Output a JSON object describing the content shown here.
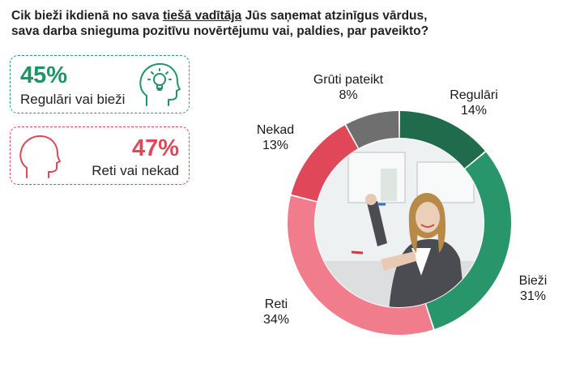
{
  "question": {
    "part1": "Cik bieži ikdienā no sava ",
    "underlined": "tiešā vadītāja",
    "part2": " Jūs saņemat atzinīgus vārdus, sava darba snieguma pozitīvu novērtējumu vai, paldies, par paveikto?"
  },
  "cards": {
    "positive": {
      "value": "45%",
      "label": "Regulāri vai bieži",
      "icon": "head-lightbulb-icon",
      "color": "#1f9467"
    },
    "negative": {
      "value": "47%",
      "label": "Reti vai nekad",
      "icon": "head-profile-icon",
      "color": "#e0485a"
    }
  },
  "chart_data": {
    "type": "donut",
    "slices": [
      {
        "name": "Regulāri",
        "value": 14,
        "label": "14%",
        "color": "#1f6b4c"
      },
      {
        "name": "Bieži",
        "value": 31,
        "label": "31%",
        "color": "#28956a"
      },
      {
        "name": "Reti",
        "value": 34,
        "label": "34%",
        "color": "#f17d8c"
      },
      {
        "name": "Nekad",
        "value": 13,
        "label": "13%",
        "color": "#e0485a"
      },
      {
        "name": "Grūti pateikt",
        "value": 8,
        "label": "8%",
        "color": "#6f6f6f"
      }
    ],
    "start": "top",
    "direction": "clockwise"
  },
  "center_image": "photo of smiling woman presenting at whiteboard"
}
